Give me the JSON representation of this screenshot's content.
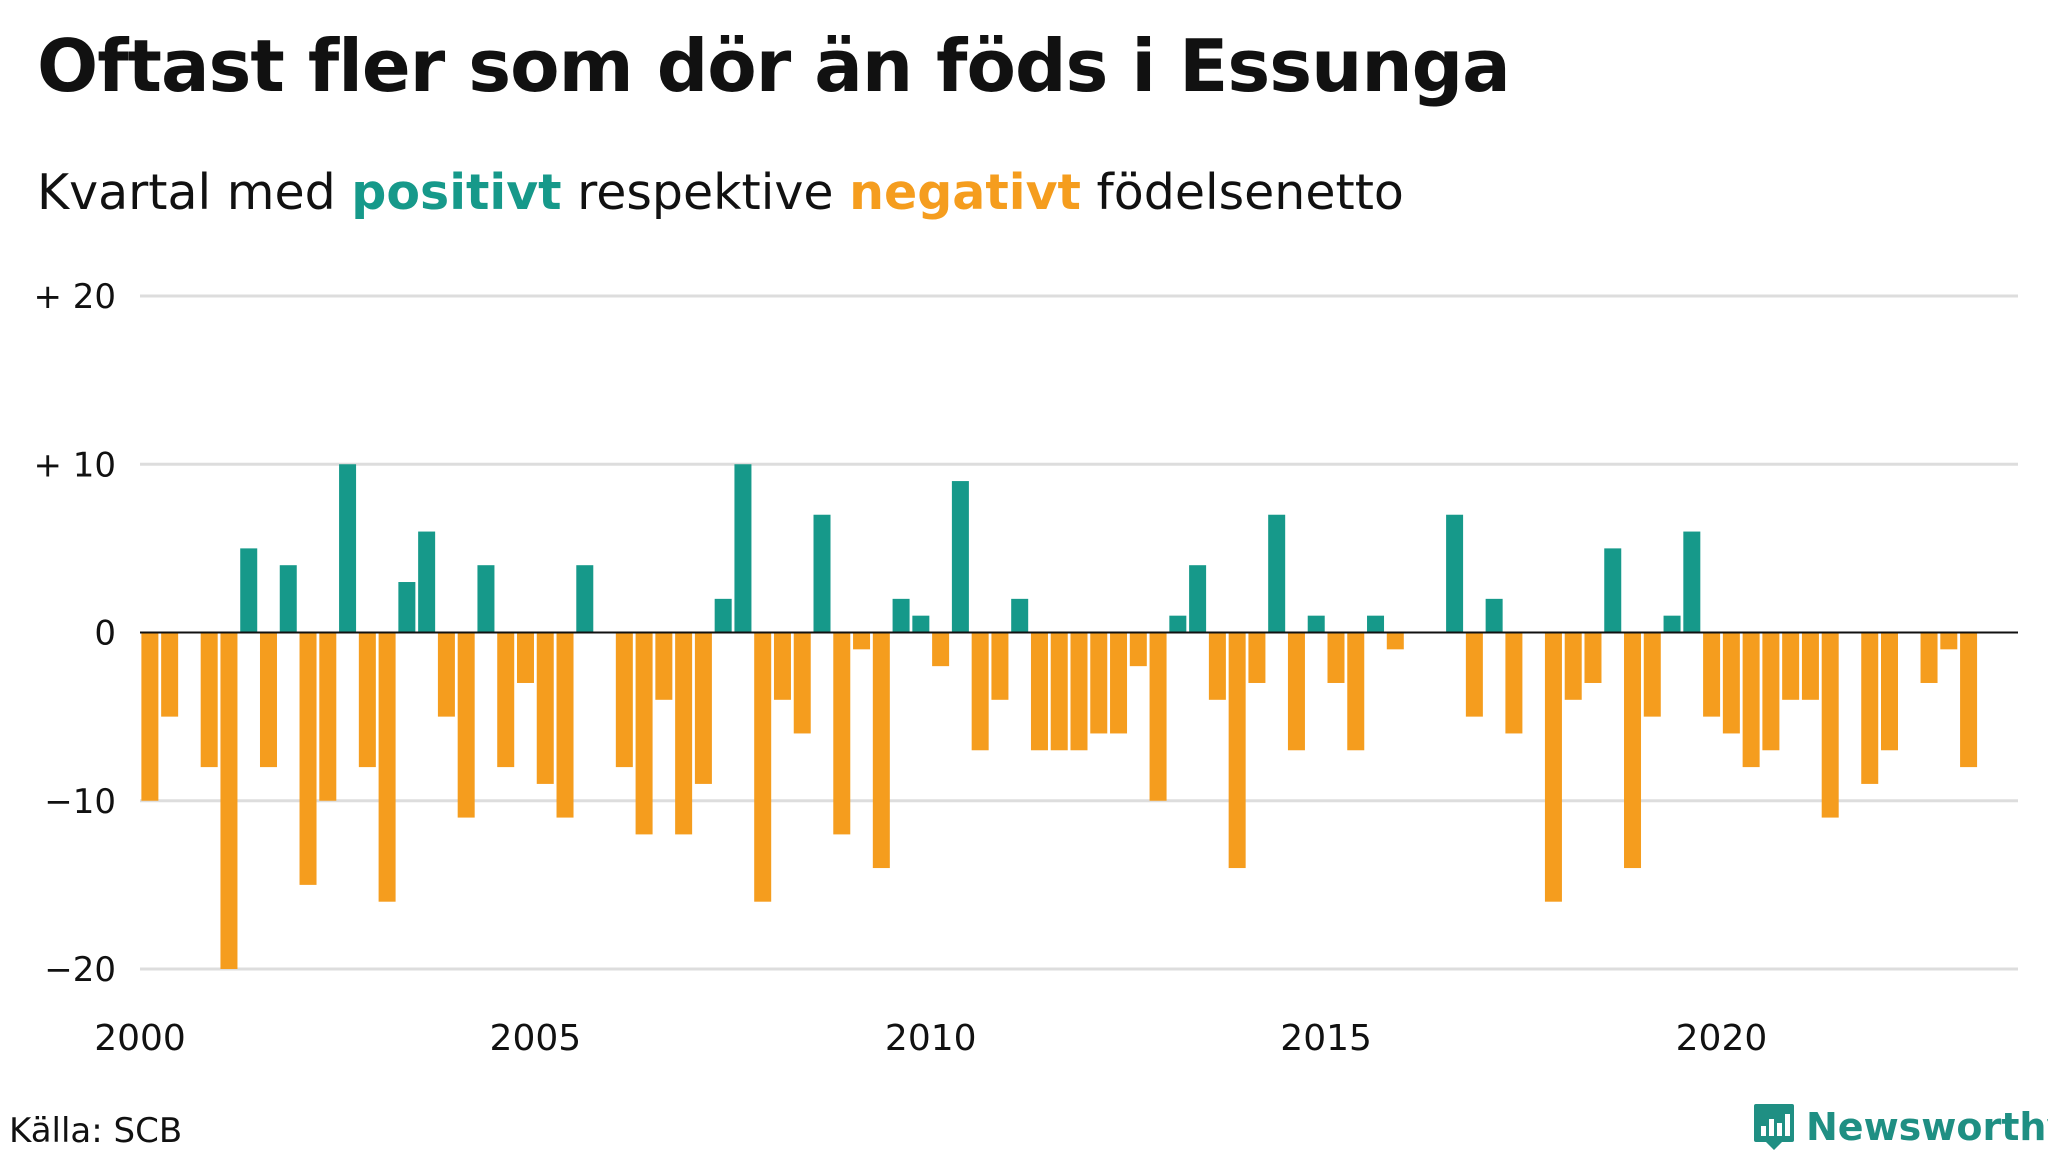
{
  "header": {
    "title": "Oftast fler som dör än föds i Essunga",
    "subtitle_prefix": "Kvartal med ",
    "subtitle_positive": "positivt",
    "subtitle_middle": " respektive ",
    "subtitle_negative": "negativt",
    "subtitle_suffix": " födelsenetto"
  },
  "footer": {
    "source": "Källa: SCB",
    "brand": "Newsworthy",
    "brand_icon": "newsworthy-logo-icon"
  },
  "colors": {
    "positive": "#16998a",
    "negative": "#f59d1e",
    "grid": "#dddddd",
    "zero_line": "#111111",
    "brand": "#1f8f83"
  },
  "chart_data": {
    "type": "bar",
    "title": "Oftast fler som dör än föds i Essunga",
    "subtitle": "Kvartal med positivt respektive negativt födelsenetto",
    "xlabel": "",
    "ylabel": "",
    "ylim": [
      -20,
      20
    ],
    "yticks": [
      {
        "value": 20,
        "label": "+ 20"
      },
      {
        "value": 10,
        "label": "+ 10"
      },
      {
        "value": 0,
        "label": "0"
      },
      {
        "value": -10,
        "label": "−10"
      },
      {
        "value": -20,
        "label": "−20"
      }
    ],
    "xlim": [
      2000,
      2023.75
    ],
    "xticks": [
      2000,
      2005,
      2010,
      2015,
      2020
    ],
    "grid": true,
    "legend": "in subtitle",
    "series": [
      {
        "x": [
          2000.0,
          2000.25,
          2000.5,
          2000.75,
          2001.0,
          2001.25,
          2001.5,
          2001.75,
          2002.0,
          2002.25,
          2002.5,
          2002.75,
          2003.0,
          2003.25,
          2003.5,
          2003.75,
          2004.0,
          2004.25,
          2004.5,
          2004.75,
          2005.0,
          2005.25,
          2005.5,
          2005.75,
          2006.0,
          2006.25,
          2006.5,
          2006.75,
          2007.0,
          2007.25,
          2007.5,
          2007.75,
          2008.0,
          2008.25,
          2008.5,
          2008.75,
          2009.0,
          2009.25,
          2009.5,
          2009.75,
          2010.0,
          2010.25,
          2010.5,
          2010.75,
          2011.0,
          2011.25,
          2011.5,
          2011.75,
          2012.0,
          2012.25,
          2012.5,
          2012.75,
          2013.0,
          2013.25,
          2013.5,
          2013.75,
          2014.0,
          2014.25,
          2014.5,
          2014.75,
          2015.0,
          2015.25,
          2015.5,
          2015.75,
          2016.0,
          2016.25,
          2016.5,
          2016.75,
          2017.0,
          2017.25,
          2017.5,
          2017.75,
          2018.0,
          2018.25,
          2018.5,
          2018.75,
          2019.0,
          2019.25,
          2019.5,
          2019.75,
          2020.0,
          2020.25,
          2020.5,
          2020.75,
          2021.0,
          2021.25,
          2021.5,
          2021.75,
          2022.0,
          2022.25,
          2022.5,
          2022.75,
          2023.0,
          2023.25
        ],
        "values": [
          -10,
          -5,
          0,
          -8,
          -20,
          5,
          -8,
          4,
          -15,
          -10,
          10,
          -8,
          -16,
          3,
          6,
          -5,
          -11,
          4,
          -8,
          -3,
          -9,
          -11,
          4,
          0,
          -8,
          -12,
          -4,
          -12,
          -9,
          2,
          10,
          -16,
          -4,
          -6,
          7,
          -12,
          -1,
          -14,
          2,
          1,
          -2,
          9,
          -7,
          -4,
          2,
          -7,
          -7,
          -7,
          -6,
          -6,
          -2,
          -10,
          1,
          4,
          -4,
          -14,
          -3,
          7,
          -7,
          1,
          -3,
          -7,
          1,
          -1,
          0,
          0,
          7,
          -5,
          2,
          -6,
          0,
          -16,
          -4,
          -3,
          5,
          -14,
          -5,
          1,
          6,
          -5,
          -6,
          -8,
          -7,
          -4,
          -4,
          -11,
          0,
          -9,
          -7,
          0,
          -3,
          -1,
          -8,
          0
        ]
      }
    ]
  }
}
